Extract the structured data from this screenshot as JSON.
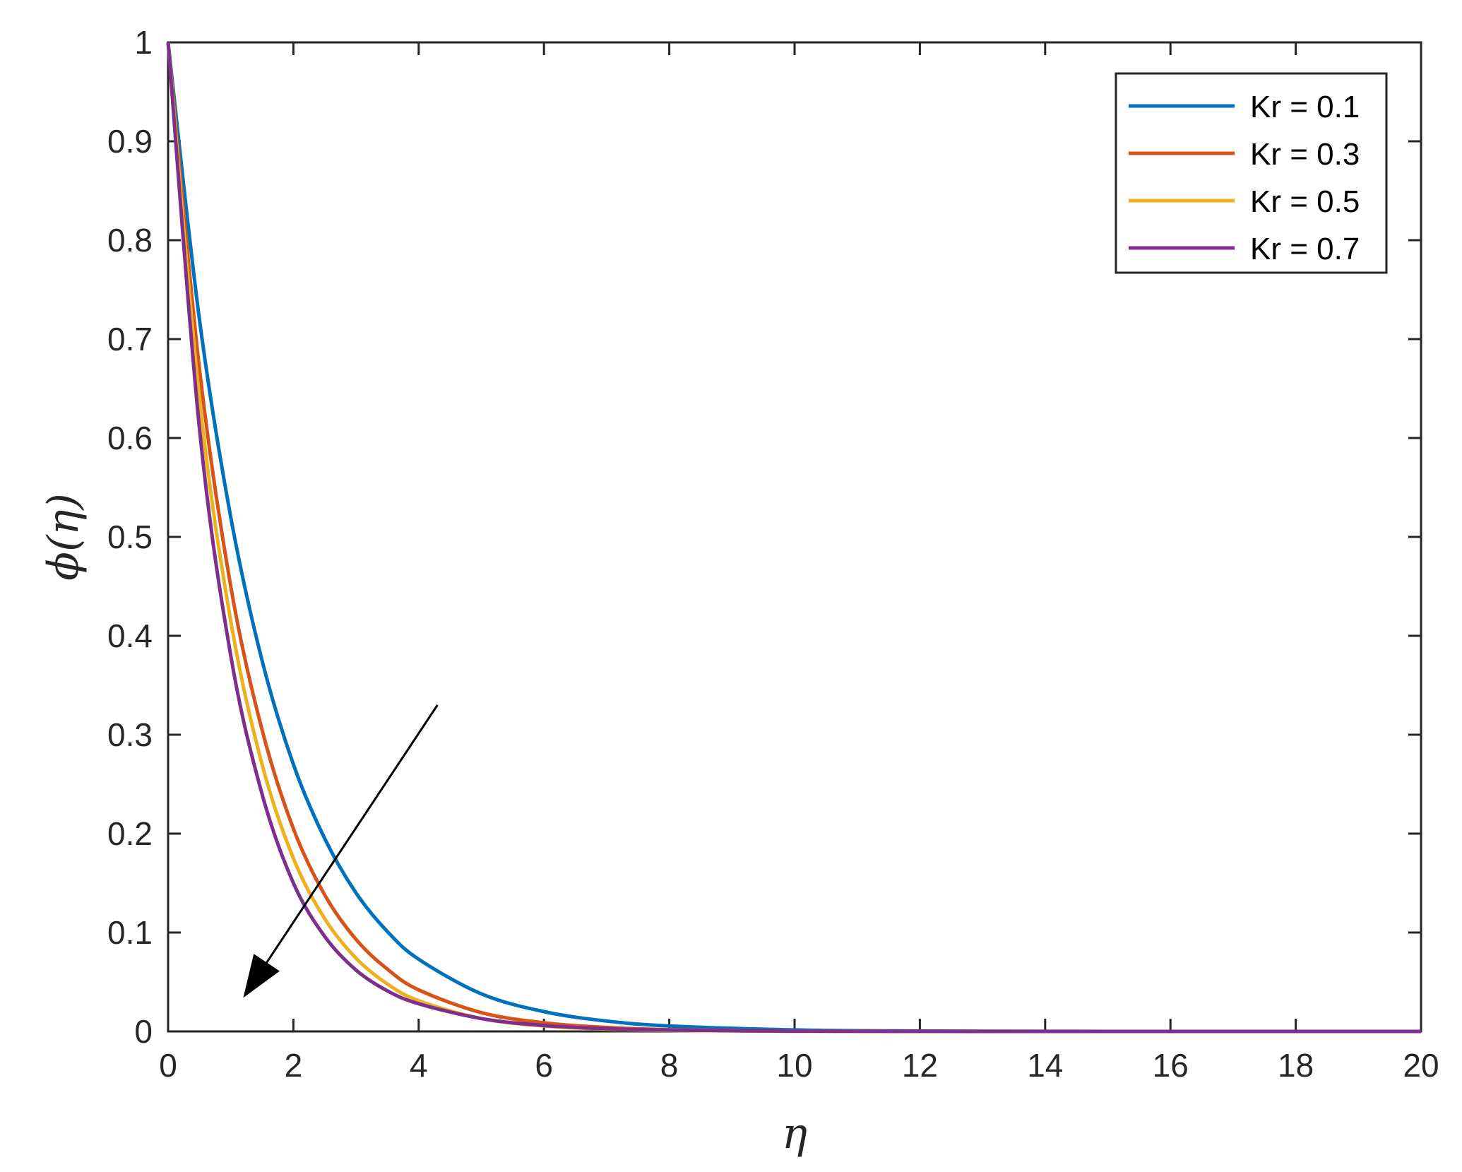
{
  "chart_data": {
    "type": "line",
    "xlabel": "η",
    "ylabel": "ϕ(η)",
    "xlim": [
      0,
      20
    ],
    "ylim": [
      0,
      1
    ],
    "xticks": [
      0,
      2,
      4,
      6,
      8,
      10,
      12,
      14,
      16,
      18,
      20
    ],
    "yticks": [
      0,
      0.1,
      0.2,
      0.3,
      0.4,
      0.5,
      0.6,
      0.7,
      0.8,
      0.9,
      1
    ],
    "grid": false,
    "legend_position": "top-right",
    "series": [
      {
        "name": "Kr = 0.1",
        "color": "#0072BD",
        "x": [
          0,
          0.5,
          1,
          1.5,
          2,
          2.5,
          3,
          3.5,
          4,
          5,
          6,
          7,
          8,
          10,
          12,
          14,
          16,
          18,
          20
        ],
        "y": [
          1,
          0.72,
          0.52,
          0.375,
          0.27,
          0.195,
          0.14,
          0.101,
          0.073,
          0.038,
          0.02,
          0.0105,
          0.0055,
          0.0015,
          0.0004,
          0.0001,
          0,
          0,
          0
        ]
      },
      {
        "name": "Kr = 0.3",
        "color": "#D95319",
        "x": [
          0,
          0.5,
          1,
          1.5,
          2,
          2.5,
          3,
          3.5,
          4,
          5,
          6,
          7,
          8,
          10,
          12,
          14,
          16,
          18,
          20
        ],
        "y": [
          1,
          0.67,
          0.45,
          0.305,
          0.205,
          0.138,
          0.093,
          0.063,
          0.042,
          0.019,
          0.0087,
          0.004,
          0.0018,
          0.0004,
          0.0001,
          0,
          0,
          0,
          0
        ]
      },
      {
        "name": "Kr = 0.5",
        "color": "#EDB120",
        "x": [
          0,
          0.5,
          1,
          1.5,
          2,
          2.5,
          3,
          3.5,
          4,
          5,
          6,
          7,
          8,
          10,
          12,
          14,
          16,
          18,
          20
        ],
        "y": [
          1,
          0.64,
          0.415,
          0.27,
          0.175,
          0.114,
          0.074,
          0.048,
          0.031,
          0.013,
          0.0055,
          0.0023,
          0.001,
          0.0002,
          0,
          0,
          0,
          0,
          0
        ]
      },
      {
        "name": "Kr = 0.7",
        "color": "#7E2F8E",
        "x": [
          0,
          0.5,
          1,
          1.5,
          2,
          2.5,
          3,
          3.5,
          4,
          5,
          6,
          7,
          8,
          10,
          12,
          14,
          16,
          18,
          20
        ],
        "y": [
          1,
          0.61,
          0.38,
          0.24,
          0.15,
          0.096,
          0.062,
          0.041,
          0.028,
          0.013,
          0.006,
          0.0028,
          0.0013,
          0.0003,
          0.0001,
          0,
          0,
          0,
          0
        ]
      }
    ],
    "annotations": [
      {
        "type": "arrow",
        "from": [
          4.3,
          0.33
        ],
        "to": [
          1.2,
          0.034
        ],
        "color": "#000000"
      }
    ]
  }
}
